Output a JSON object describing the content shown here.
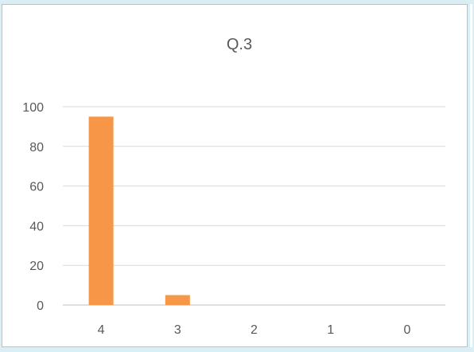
{
  "chart_data": {
    "type": "bar",
    "title": "Q.3",
    "categories": [
      "4",
      "3",
      "2",
      "1",
      "0"
    ],
    "values": [
      95,
      5,
      0,
      0,
      0
    ],
    "ylim": [
      0,
      100
    ],
    "yticks": [
      "0",
      "20",
      "40",
      "60",
      "80",
      "100"
    ],
    "grid": true,
    "legend": "none",
    "colors": {
      "bar": "#f79646",
      "grid": "#d9d9d9",
      "axis": "#bfbfbf",
      "text": "#595959"
    }
  }
}
